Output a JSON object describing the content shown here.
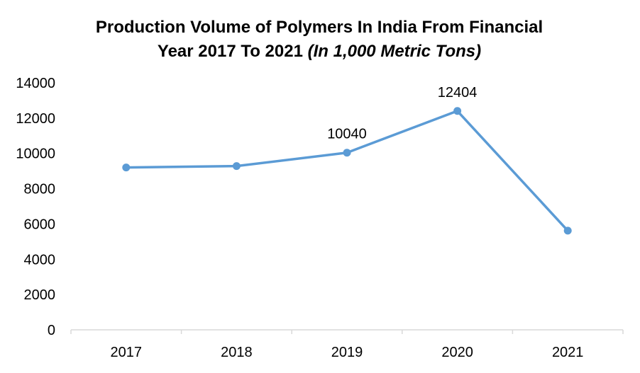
{
  "chart_data": {
    "type": "line",
    "title_line1": "Production Volume of Polymers In India From Financial",
    "title_line2_main": "Year 2017 To 2021 ",
    "title_line2_italic": "(In 1,000 Metric Tons)",
    "xlabel": "",
    "ylabel": "",
    "categories": [
      "2017",
      "2018",
      "2019",
      "2020",
      "2021"
    ],
    "series": [
      {
        "values": [
          9200,
          9280,
          10040,
          12404,
          5620
        ],
        "data_labels": [
          null,
          null,
          "10040",
          "12404",
          null
        ],
        "color": "#5b9bd5"
      }
    ],
    "ylim": [
      0,
      14000
    ],
    "yticks": [
      "0",
      "2000",
      "4000",
      "6000",
      "8000",
      "10000",
      "12000",
      "14000"
    ],
    "grid": false,
    "legend": false,
    "axis_color": "#d9d9d9"
  }
}
